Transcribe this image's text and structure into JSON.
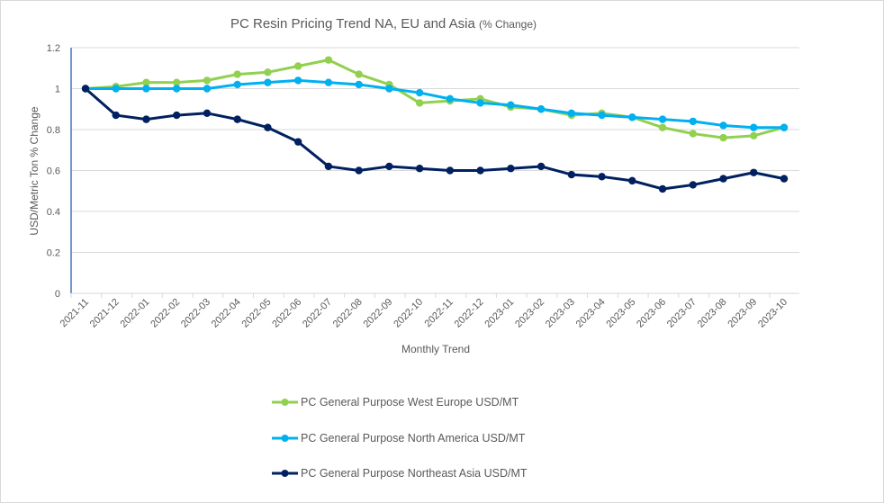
{
  "chart_data": {
    "type": "line",
    "title": "PC Resin Pricing Trend NA, EU and Asia",
    "title_suffix": "(% Change)",
    "xlabel": "Monthly Trend",
    "ylabel": "USD/Metric Ton % Change",
    "ylim": [
      0,
      1.2
    ],
    "yticks": [
      "0",
      "0.2",
      "0.4",
      "0.6",
      "0.8",
      "1",
      "1.2"
    ],
    "ytick_values": [
      0,
      0.2,
      0.4,
      0.6,
      0.8,
      1.0,
      1.2
    ],
    "grid": true,
    "legend_position": "bottom",
    "categories": [
      "2021-11",
      "2021-12",
      "2022-01",
      "2022-02",
      "2022-03",
      "2022-04",
      "2022-05",
      "2022-06",
      "2022-07",
      "2022-08",
      "2022-09",
      "2022-10",
      "2022-11",
      "2022-12",
      "2023-01",
      "2023-02",
      "2023-03",
      "2023-04",
      "2023-05",
      "2023-06",
      "2023-07",
      "2023-08",
      "2023-09",
      "2023-10"
    ],
    "series": [
      {
        "name": "PC General Purpose West Europe USD/MT",
        "color": "#92d050",
        "values": [
          1.0,
          1.01,
          1.03,
          1.03,
          1.04,
          1.07,
          1.08,
          1.11,
          1.14,
          1.07,
          1.02,
          0.93,
          0.94,
          0.95,
          0.91,
          0.9,
          0.87,
          0.88,
          0.86,
          0.81,
          0.78,
          0.76,
          0.77,
          0.81
        ]
      },
      {
        "name": "PC General Purpose North America USD/MT",
        "color": "#00b0f0",
        "values": [
          1.0,
          1.0,
          1.0,
          1.0,
          1.0,
          1.02,
          1.03,
          1.04,
          1.03,
          1.02,
          1.0,
          0.98,
          0.95,
          0.93,
          0.92,
          0.9,
          0.88,
          0.87,
          0.86,
          0.85,
          0.84,
          0.82,
          0.81,
          0.81
        ]
      },
      {
        "name": "PC General Purpose Northeast Asia USD/MT",
        "color": "#002060",
        "values": [
          1.0,
          0.87,
          0.85,
          0.87,
          0.88,
          0.85,
          0.81,
          0.74,
          0.62,
          0.6,
          0.62,
          0.61,
          0.6,
          0.6,
          0.61,
          0.62,
          0.58,
          0.57,
          0.55,
          0.51,
          0.53,
          0.56,
          0.59,
          0.56
        ]
      }
    ]
  }
}
